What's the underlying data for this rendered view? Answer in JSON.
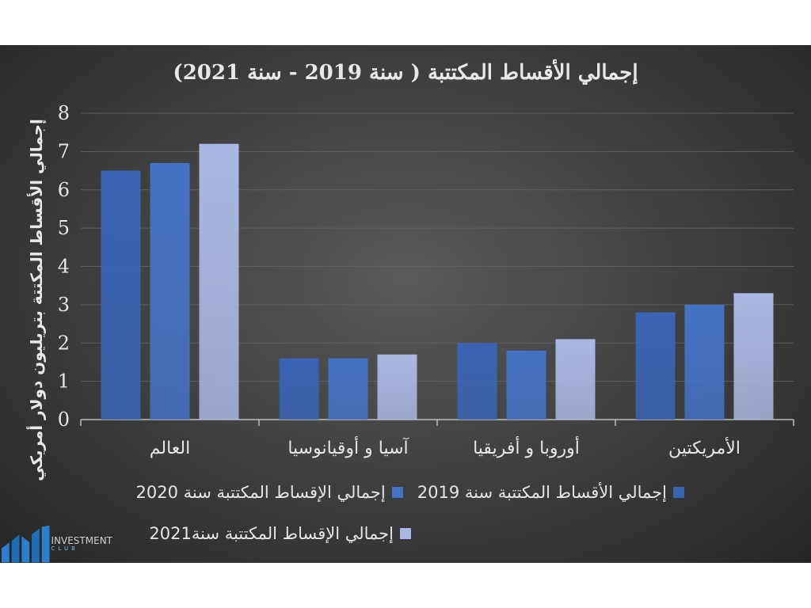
{
  "chart_data": {
    "type": "bar",
    "title": "إجمالي الأقساط المكتتبة ( سنة 2019 - سنة 2021)",
    "ylabel": "إجمالي الأقساط المكتتة بتريليون دولار أمريكي",
    "xlabel": "",
    "ylim": [
      0,
      8
    ],
    "yticks": [
      "0",
      "1",
      "2",
      "3",
      "4",
      "5",
      "6",
      "7",
      "8"
    ],
    "grid": true,
    "legend_position": "bottom",
    "categories": [
      "العالم",
      "آسيا و أوقيانوسيا",
      "أوروبا و أفريقيا",
      "الأمريكتين"
    ],
    "series": [
      {
        "name": "إجمالي الأقساط المكتتبة سنة 2019",
        "values": [
          6.5,
          1.6,
          2.0,
          2.8
        ],
        "color": "#3a64b4"
      },
      {
        "name": "إجمالي الإقساط المكتتبة سنة 2020",
        "values": [
          6.7,
          1.6,
          1.8,
          3.0
        ],
        "color": "#4472c4"
      },
      {
        "name": "إجمالي الإقساط المكتتبة سنة2021",
        "values": [
          7.2,
          1.7,
          2.1,
          3.3
        ],
        "color": "#a9b8e2"
      }
    ]
  },
  "colors": {
    "background": "#3f3f3f",
    "grid": "#5f5f5f",
    "text": "#e6e6e6",
    "brand": "#1f6fb8"
  },
  "logo": {
    "line1": "INVESTMENT",
    "line2": "CLUB",
    "icon": "bar-logo-icon"
  }
}
